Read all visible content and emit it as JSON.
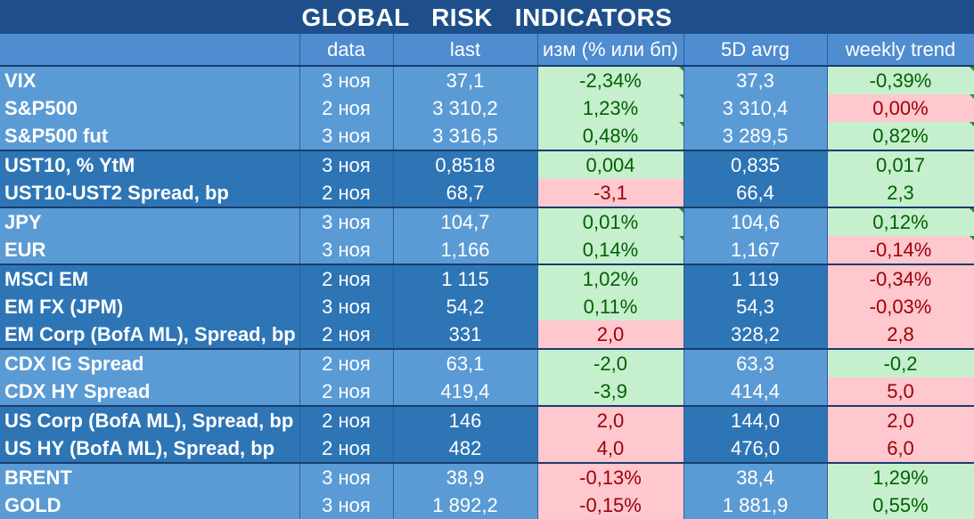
{
  "title": "GLOBAL   RISK   INDICATORS",
  "headers": [
    "",
    "data",
    "last",
    "изм (% или бп)",
    "5D avrg",
    "weekly trend"
  ],
  "colors": {
    "positive_fill": "#c6efce",
    "positive_text": "#006100",
    "negative_fill": "#ffc7ce",
    "negative_text": "#9c0006",
    "light_blue": "#5b9bd5",
    "dark_blue": "#2e75b6",
    "header_blue": "#1e4f8a"
  },
  "rows": [
    {
      "name": "VIX",
      "date": "3 ноя",
      "last": "37,1",
      "change": "-2,34%",
      "change_status": "pos",
      "avg5d": "37,3",
      "trend": "-0,39%",
      "trend_status": "pos"
    },
    {
      "name": "S&P500",
      "date": "2 ноя",
      "last": "3 310,2",
      "change": "1,23%",
      "change_status": "pos",
      "avg5d": "3 310,4",
      "trend": "0,00%",
      "trend_status": "neg"
    },
    {
      "name": "S&P500 fut",
      "date": "3 ноя",
      "last": "3 316,5",
      "change": "0,48%",
      "change_status": "pos",
      "avg5d": "3 289,5",
      "trend": "0,82%",
      "trend_status": "pos"
    },
    {
      "name": "UST10, % YtM",
      "date": "3 ноя",
      "last": "0,8518",
      "change": "0,004",
      "change_status": "pos",
      "avg5d": "0,835",
      "trend": "0,017",
      "trend_status": "pos"
    },
    {
      "name": "UST10-UST2 Spread, bp",
      "date": "2 ноя",
      "last": "68,7",
      "change": "-3,1",
      "change_status": "neg",
      "avg5d": "66,4",
      "trend": "2,3",
      "trend_status": "pos"
    },
    {
      "name": "JPY",
      "date": "3 ноя",
      "last": "104,7",
      "change": "0,01%",
      "change_status": "pos",
      "avg5d": "104,6",
      "trend": "0,12%",
      "trend_status": "pos"
    },
    {
      "name": "EUR",
      "date": "3 ноя",
      "last": "1,166",
      "change": "0,14%",
      "change_status": "pos",
      "avg5d": "1,167",
      "trend": "-0,14%",
      "trend_status": "neg"
    },
    {
      "name": "MSCI EM",
      "date": "2 ноя",
      "last": "1 115",
      "change": "1,02%",
      "change_status": "pos",
      "avg5d": "1 119",
      "trend": "-0,34%",
      "trend_status": "neg"
    },
    {
      "name": "EM FX (JPM)",
      "date": "3 ноя",
      "last": "54,2",
      "change": "0,11%",
      "change_status": "pos",
      "avg5d": "54,3",
      "trend": "-0,03%",
      "trend_status": "neg"
    },
    {
      "name": "EM Corp (BofA ML), Spread, bp",
      "date": "2 ноя",
      "last": "331",
      "change": "2,0",
      "change_status": "neg",
      "avg5d": "328,2",
      "trend": "2,8",
      "trend_status": "neg"
    },
    {
      "name": "CDX IG Spread",
      "date": "2 ноя",
      "last": "63,1",
      "change": "-2,0",
      "change_status": "pos",
      "avg5d": "63,3",
      "trend": "-0,2",
      "trend_status": "pos"
    },
    {
      "name": "CDX HY Spread",
      "date": "2 ноя",
      "last": "419,4",
      "change": "-3,9",
      "change_status": "pos",
      "avg5d": "414,4",
      "trend": "5,0",
      "trend_status": "neg"
    },
    {
      "name": "US Corp (BofA ML), Spread, bp",
      "date": "2 ноя",
      "last": "146",
      "change": "2,0",
      "change_status": "neg",
      "avg5d": "144,0",
      "trend": "2,0",
      "trend_status": "neg"
    },
    {
      "name": "US HY (BofA ML), Spread, bp",
      "date": "2 ноя",
      "last": "482",
      "change": "4,0",
      "change_status": "neg",
      "avg5d": "476,0",
      "trend": "6,0",
      "trend_status": "neg"
    },
    {
      "name": "BRENT",
      "date": "3 ноя",
      "last": "38,9",
      "change": "-0,13%",
      "change_status": "neg",
      "avg5d": "38,4",
      "trend": "1,29%",
      "trend_status": "pos"
    },
    {
      "name": "GOLD",
      "date": "3 ноя",
      "last": "1 892,2",
      "change": "-0,15%",
      "change_status": "neg",
      "avg5d": "1 881,9",
      "trend": "0,55%",
      "trend_status": "pos"
    }
  ]
}
